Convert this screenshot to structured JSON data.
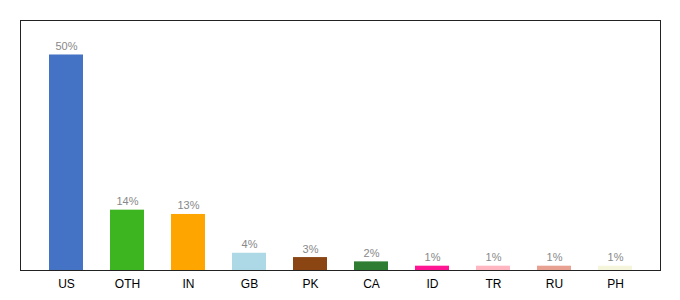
{
  "chart_data": {
    "type": "bar",
    "categories": [
      "US",
      "OTH",
      "IN",
      "GB",
      "PK",
      "CA",
      "ID",
      "TR",
      "RU",
      "PH"
    ],
    "values": [
      50,
      14,
      13,
      4,
      3,
      2,
      1,
      1,
      1,
      1
    ],
    "value_labels": [
      "50%",
      "14%",
      "13%",
      "4%",
      "3%",
      "2%",
      "1%",
      "1%",
      "1%",
      "1%"
    ],
    "colors": [
      "#4472C4",
      "#3CB521",
      "#FFA500",
      "#ADD8E6",
      "#8B4513",
      "#2E7D32",
      "#FF1493",
      "#FFB6C1",
      "#E8A090",
      "#F5F5DC"
    ],
    "ylim": [
      0,
      58
    ],
    "tick_labels": "x",
    "data_labels": true
  }
}
